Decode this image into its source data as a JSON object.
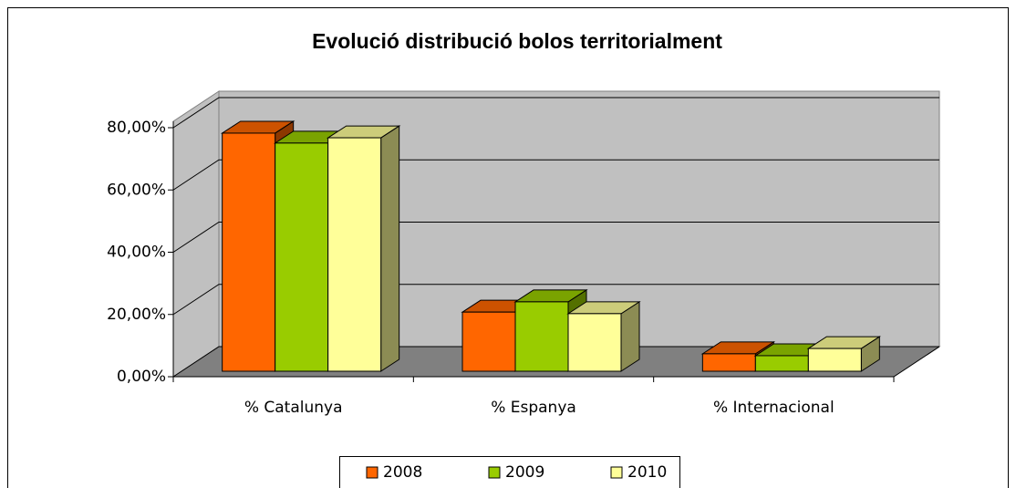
{
  "chart_data": {
    "type": "bar3d",
    "title": "Evolució distribució bolos territorialment",
    "categories": [
      "% Catalunya",
      "% Espanya",
      "% Internacional"
    ],
    "series": [
      {
        "name": "2008",
        "color": "#ff6600",
        "values": [
          76.5,
          19.0,
          5.6
        ]
      },
      {
        "name": "2009",
        "color": "#99cc00",
        "values": [
          73.3,
          22.3,
          5.0
        ]
      },
      {
        "name": "2010",
        "color": "#ffff99",
        "values": [
          75.0,
          18.5,
          7.3
        ]
      }
    ],
    "ylim": [
      0,
      80
    ],
    "yticks": [
      {
        "value": 0,
        "label": "0,00%"
      },
      {
        "value": 20,
        "label": "20,00%"
      },
      {
        "value": 40,
        "label": "40,00%"
      },
      {
        "value": 60,
        "label": "60,00%"
      },
      {
        "value": 80,
        "label": "80,00%"
      }
    ],
    "grid": true,
    "legend": "bottom"
  }
}
